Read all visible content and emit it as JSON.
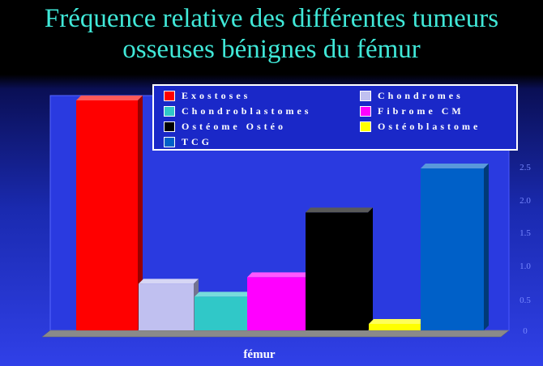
{
  "title_lines": [
    "Fréquence relative des différentes tumeurs",
    "osseuses bénignes du fémur"
  ],
  "chart_data": {
    "type": "bar",
    "title": "Fréquence relative des différentes tumeurs osseuses bénignes du fémur",
    "categories": [
      "fémur"
    ],
    "xlabel": "fémur",
    "ylabel": "",
    "ylim": [
      0,
      4
    ],
    "yticks": [
      "0",
      "0.5",
      "1.0",
      "1.5",
      "2.0",
      "2.5"
    ],
    "grid": false,
    "legend_position": "top",
    "series": [
      {
        "name": "Exostoses",
        "value": 3.55,
        "color": "#ff0000"
      },
      {
        "name": "Chondromes",
        "value": 0.72,
        "color": "#c0c0f0"
      },
      {
        "name": "Chondroblastomes",
        "value": 0.52,
        "color": "#30c8c8"
      },
      {
        "name": "Fibrome CM",
        "value": 0.82,
        "color": "#ff00ff"
      },
      {
        "name": "Ostéome Ostéo",
        "value": 1.82,
        "color": "#000000"
      },
      {
        "name": "Ostéoblastome",
        "value": 0.1,
        "color": "#ffff00"
      },
      {
        "name": "TCG",
        "value": 2.5,
        "color": "#0060c8"
      }
    ]
  },
  "legend_labels": [
    "Exostoses",
    "Chondromes",
    "Chondroblastomes",
    "Fibrome CM",
    "Ostéome Ostéo",
    "Ostéoblastome",
    "TCG"
  ]
}
